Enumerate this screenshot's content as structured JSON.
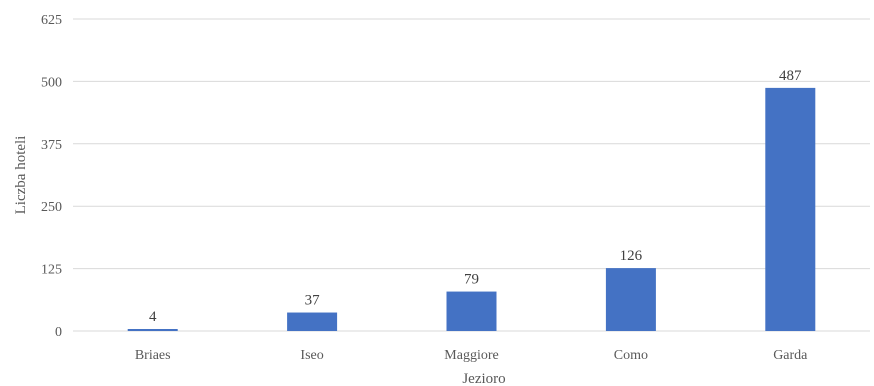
{
  "chart_data": {
    "type": "bar",
    "categories": [
      "Briaes",
      "Iseo",
      "Maggiore",
      "Como",
      "Garda"
    ],
    "values": [
      4,
      37,
      79,
      126,
      487
    ],
    "data_labels": [
      "4",
      "37",
      "79",
      "126",
      "487"
    ],
    "title": "",
    "xlabel": "Jezioro",
    "ylabel": "Liczba hoteli",
    "ylim": [
      0,
      625
    ],
    "yticks": [
      0,
      125,
      250,
      375,
      500,
      625
    ],
    "ytick_labels": [
      "0",
      "125",
      "250",
      "375",
      "500",
      "625"
    ],
    "grid": true,
    "legend": "none",
    "bar_color": "#4472c4"
  }
}
